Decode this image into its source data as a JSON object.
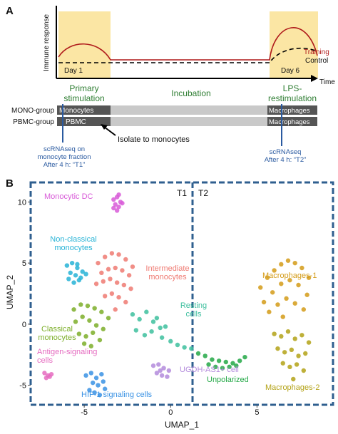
{
  "panel_a": {
    "label": "A",
    "y_axis_label": "Immune response",
    "x_axis_label": "Time",
    "day_1": "Day 1",
    "day_6": "Day 6",
    "training": "Training",
    "control": "Control",
    "primary_stimulation": [
      "Primary",
      "stimulation"
    ],
    "incubation": "Incubation",
    "lps_restimulation": [
      "LPS-",
      "restimulation"
    ],
    "mono_group": {
      "name": "MONO-group",
      "start": "Monocytes",
      "end": "Macrophages"
    },
    "pbmc_group": {
      "name": "PBMC-group",
      "start": "PBMC",
      "end": "Macrophages"
    },
    "isolate": "Isolate to monocytes",
    "t1_note": [
      "scRNAseq on",
      "monocyte fraction",
      "After 4 h: “T1”"
    ],
    "t2_note": [
      "scRNAseq",
      "After 4 h: “T2”"
    ]
  },
  "panel_b_label": "B",
  "chart_data": {
    "type": "scatter",
    "xlabel": "UMAP_1",
    "ylabel": "UMAP_2",
    "regions": [
      "T1",
      "T2"
    ],
    "xlim": [
      -8.1,
      9.4
    ],
    "ylim": [
      -6.6,
      11.6
    ],
    "xticks": [
      -5,
      0,
      5
    ],
    "yticks": [
      -5,
      0,
      5,
      10
    ],
    "series": [
      {
        "name": "Monocytic DC",
        "color": "#d85ad8",
        "x": [
          -3.3,
          -3.1,
          -2.9,
          -3.2,
          -3.0,
          -3.1,
          -2.8,
          -3.3,
          -3.0
        ],
        "values": [
          10.2,
          10.4,
          10.0,
          9.8,
          9.6,
          9.3,
          9.9,
          9.5,
          10.6
        ]
      },
      {
        "name": "Non-classical monocytes",
        "color": "#27b3d6",
        "x": [
          -6.0,
          -5.7,
          -5.4,
          -5.1,
          -5.8,
          -5.5,
          -5.2,
          -5.9,
          -5.6,
          -5.3,
          -4.9,
          -5.4
        ],
        "values": [
          4.8,
          5.0,
          4.6,
          4.3,
          4.2,
          4.0,
          3.8,
          3.7,
          3.4,
          3.6,
          4.1,
          4.9
        ]
      },
      {
        "name": "Intermediate monocytes",
        "color": "#ef7a72",
        "x": [
          -4.2,
          -3.8,
          -3.4,
          -3.0,
          -2.6,
          -2.2,
          -4.0,
          -3.6,
          -3.2,
          -2.8,
          -2.4,
          -4.3,
          -3.9,
          -3.5,
          -3.1,
          -2.7,
          -2.3,
          -3.8,
          -3.4,
          -3.0,
          -2.6,
          -3.2
        ],
        "values": [
          5.0,
          5.5,
          5.8,
          5.7,
          5.3,
          4.7,
          4.2,
          4.5,
          4.6,
          4.4,
          4.0,
          3.3,
          3.5,
          3.7,
          3.4,
          3.2,
          2.9,
          2.3,
          2.5,
          2.2,
          1.8,
          1.2
        ]
      },
      {
        "name": "Resting cells",
        "color": "#3dbf9e",
        "x": [
          -2.2,
          -1.8,
          -1.4,
          -1.0,
          -0.6,
          -2.0,
          -1.5,
          -1.1,
          -0.5,
          0.0,
          0.4,
          0.8,
          1.2,
          -0.8,
          -0.3
        ],
        "values": [
          0.8,
          0.4,
          1.0,
          0.2,
          -0.3,
          -0.5,
          -0.9,
          -0.6,
          -1.1,
          -1.4,
          -1.7,
          -1.9,
          -2.0,
          0.5,
          -0.2
        ]
      },
      {
        "name": "Classical monocytes",
        "color": "#7cae29",
        "x": [
          -5.6,
          -5.2,
          -4.8,
          -4.4,
          -4.0,
          -3.6,
          -5.5,
          -5.1,
          -4.7,
          -4.3,
          -3.9,
          -5.3,
          -4.9,
          -4.5,
          -4.1,
          -5.0,
          -4.6
        ],
        "values": [
          1.2,
          1.6,
          1.5,
          1.3,
          1.0,
          0.5,
          0.2,
          0.6,
          0.3,
          -0.1,
          -0.4,
          -0.8,
          -1.0,
          -0.7,
          -1.3,
          -1.6,
          -1.8
        ]
      },
      {
        "name": "Antigen-signaling cells",
        "color": "#e56bc0",
        "x": [
          -7.3,
          -7.1,
          -6.9,
          -7.2,
          -7.0
        ],
        "values": [
          -4.0,
          -4.2,
          -4.1,
          -4.4,
          -4.3
        ]
      },
      {
        "name": "UGDH-AS1+ cell",
        "color": "#b38bdc",
        "x": [
          -1.0,
          -0.7,
          -0.4,
          -0.1,
          -0.8,
          -0.5,
          -0.2,
          -0.6
        ],
        "values": [
          -3.4,
          -3.3,
          -3.6,
          -3.8,
          -4.0,
          -4.2,
          -4.3,
          -3.8
        ]
      },
      {
        "name": "HIF-1 signaling cells",
        "color": "#3a92e4",
        "x": [
          -4.9,
          -4.6,
          -4.3,
          -4.0,
          -4.5,
          -4.2,
          -3.9,
          -4.7,
          -4.4,
          -4.1,
          -3.8
        ],
        "values": [
          -4.2,
          -4.0,
          -4.4,
          -4.1,
          -4.8,
          -5.0,
          -4.7,
          -5.4,
          -5.6,
          -5.8,
          -5.3
        ]
      },
      {
        "name": "Unpolarized",
        "color": "#23a846",
        "x": [
          1.6,
          2.0,
          2.4,
          2.8,
          3.2,
          3.6,
          4.0,
          4.3,
          2.2,
          2.6,
          3.0,
          3.4,
          3.8
        ],
        "values": [
          -2.4,
          -2.6,
          -2.9,
          -3.0,
          -3.1,
          -3.2,
          -3.0,
          -2.7,
          -3.3,
          -3.5,
          -3.6,
          -3.5,
          -3.4
        ]
      },
      {
        "name": "Macrophages-1",
        "color": "#d49b17",
        "x": [
          5.2,
          5.6,
          6.0,
          6.4,
          6.8,
          7.2,
          7.6,
          8.0,
          5.4,
          5.9,
          6.4,
          6.9,
          7.4,
          7.9,
          5.7,
          6.2,
          6.7,
          7.2,
          7.7,
          6.5
        ],
        "values": [
          3.0,
          3.8,
          4.4,
          4.9,
          5.2,
          5.0,
          4.6,
          3.8,
          1.8,
          2.6,
          3.3,
          3.6,
          3.2,
          2.4,
          1.0,
          1.6,
          2.1,
          1.7,
          1.2,
          0.6
        ]
      },
      {
        "name": "Macrophages-2",
        "color": "#b3a216",
        "x": [
          6.0,
          6.4,
          6.8,
          7.2,
          7.6,
          8.0,
          6.2,
          6.6,
          7.0,
          7.4,
          7.8,
          6.5,
          6.9,
          7.3,
          7.7,
          7.1
        ],
        "values": [
          -0.8,
          -1.0,
          -0.6,
          -1.2,
          -0.9,
          -1.5,
          -2.0,
          -2.3,
          -2.1,
          -2.6,
          -2.4,
          -3.2,
          -3.5,
          -3.3,
          -3.8,
          -4.5
        ]
      }
    ]
  }
}
